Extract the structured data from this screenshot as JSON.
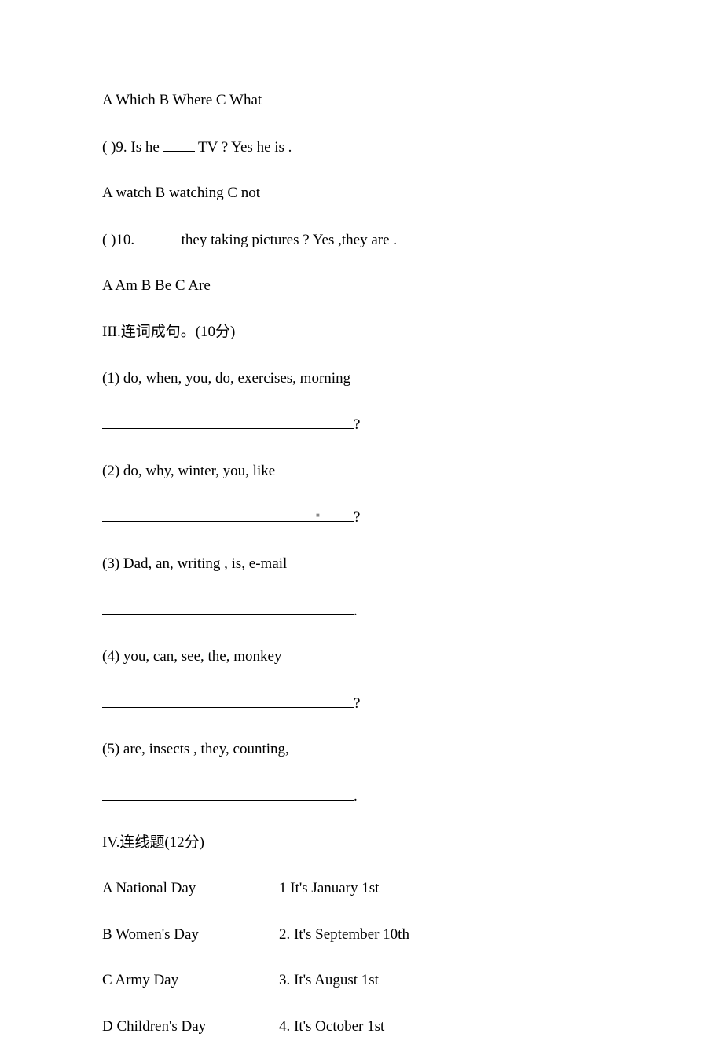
{
  "q8_options": "A Which  B Where  C What",
  "q9_prompt_pre": "(   )9. Is he ",
  "q9_prompt_post": " TV ? Yes he is .",
  "q9_options": "A watch  B watching  C not",
  "q10_prompt_pre": "(    )10. ",
  "q10_prompt_post": " they taking pictures ? Yes ,they are .",
  "q10_options": "A Am  B Be  C Are",
  "section3_title": "III.连词成句。(10分)",
  "s3_items": {
    "i1": "(1)  do, when, you, do, exercises, morning",
    "i2": "(2)  do, why, winter, you, like",
    "i3": "(3)  Dad, an, writing , is, e-mail",
    "i4": "(4)  you, can, see, the, monkey",
    "i5": "(5)  are, insects , they, counting,"
  },
  "punct": {
    "qmark": "?",
    "period": "."
  },
  "section4_title": "IV.连线题(12分)",
  "matching": {
    "rowA": {
      "left": "A  National Day",
      "right": "1 It's January 1st"
    },
    "rowB": {
      "left": "B  Women's Day",
      "right": "2. It's September 10th"
    },
    "rowC": {
      "left": "C  Army Day",
      "right": "3. It's August 1st"
    },
    "rowD": {
      "left": "D  Children's Day",
      "right": "4. It's October 1st"
    }
  },
  "side_marker": "■"
}
